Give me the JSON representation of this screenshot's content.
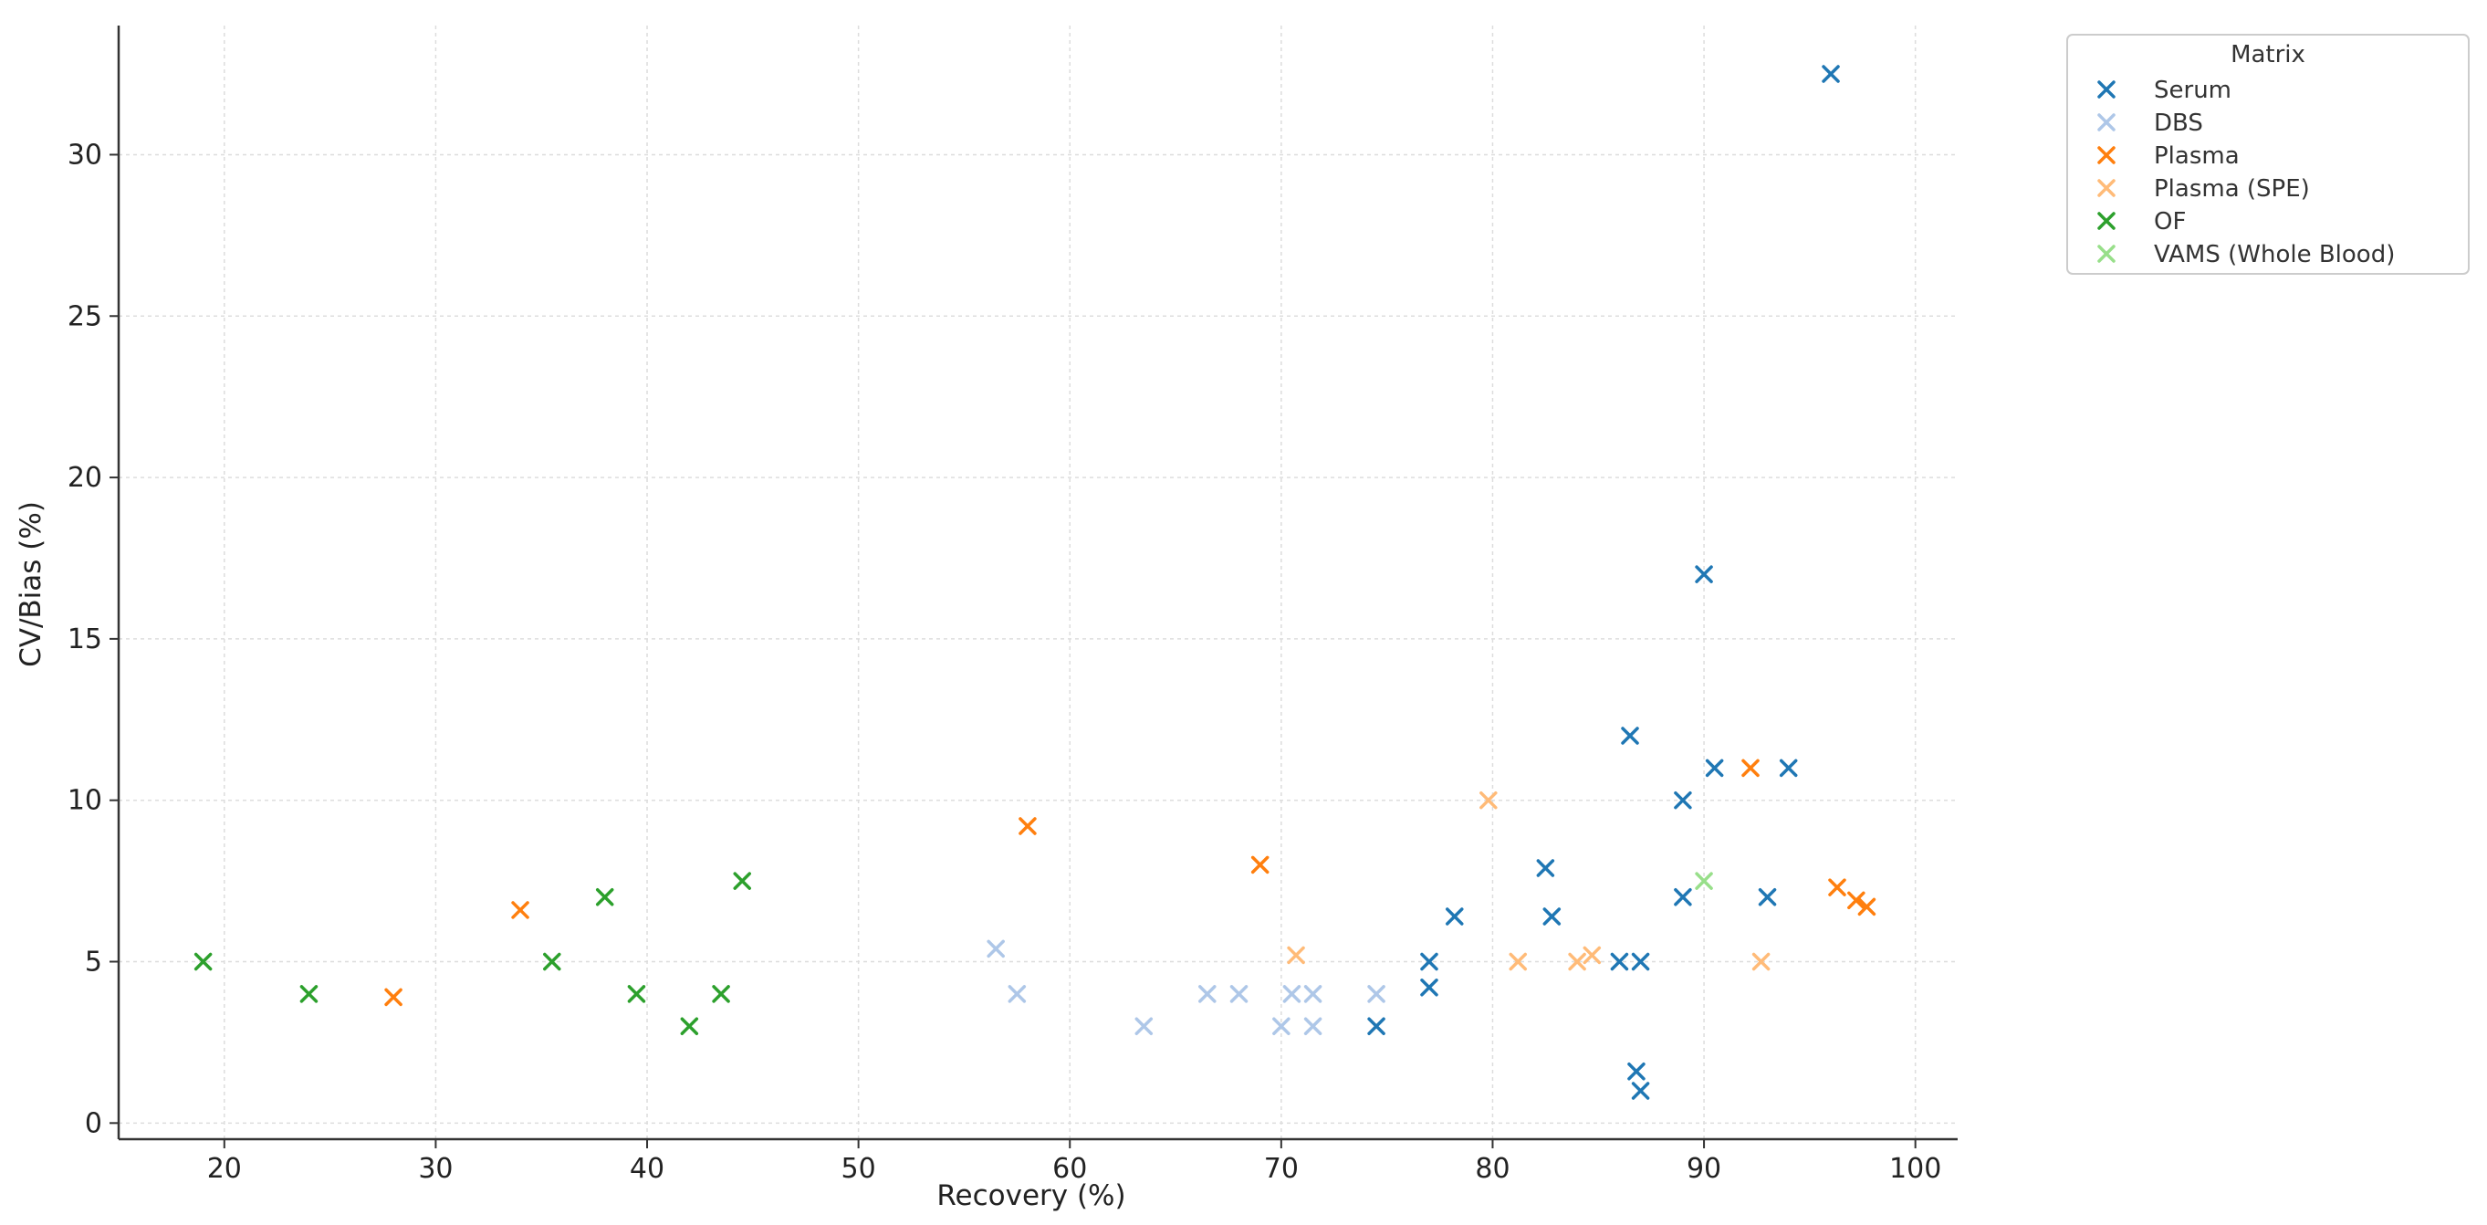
{
  "chart_data": {
    "type": "scatter",
    "xlabel": "Recovery (%)",
    "ylabel": "CV/Bias (%)",
    "xlim": [
      15,
      102
    ],
    "ylim": [
      -0.5,
      34
    ],
    "xticks": [
      20,
      30,
      40,
      50,
      60,
      70,
      80,
      90,
      100
    ],
    "yticks": [
      0,
      5,
      10,
      15,
      20,
      25,
      30
    ],
    "grid": true,
    "marker": "x",
    "legend": {
      "title": "Matrix",
      "placement": "outside-top-right"
    },
    "series": [
      {
        "name": "Serum",
        "color": "#1f77b4",
        "points": [
          [
            96,
            32.5
          ],
          [
            90,
            17
          ],
          [
            86.5,
            12
          ],
          [
            90.5,
            11
          ],
          [
            94,
            11
          ],
          [
            89,
            10
          ],
          [
            82.5,
            7.9
          ],
          [
            89,
            7
          ],
          [
            93,
            7
          ],
          [
            78.2,
            6.4
          ],
          [
            82.8,
            6.4
          ],
          [
            77,
            5
          ],
          [
            86,
            5
          ],
          [
            87,
            5
          ],
          [
            77,
            4.2
          ],
          [
            74.5,
            3
          ],
          [
            86.8,
            1.6
          ],
          [
            87,
            1
          ]
        ]
      },
      {
        "name": "DBS",
        "color": "#aec7e8",
        "points": [
          [
            56.5,
            5.4
          ],
          [
            57.5,
            4
          ],
          [
            66.5,
            4
          ],
          [
            68,
            4
          ],
          [
            70.5,
            4
          ],
          [
            71.5,
            4
          ],
          [
            74.5,
            4
          ],
          [
            63.5,
            3
          ],
          [
            70,
            3
          ],
          [
            71.5,
            3
          ]
        ]
      },
      {
        "name": "Plasma",
        "color": "#ff7f0e",
        "points": [
          [
            58,
            9.2
          ],
          [
            69,
            8
          ],
          [
            34,
            6.6
          ],
          [
            28,
            3.9
          ],
          [
            92.2,
            11
          ],
          [
            96.3,
            7.3
          ],
          [
            97.2,
            6.9
          ],
          [
            97.7,
            6.7
          ]
        ]
      },
      {
        "name": "Plasma (SPE)",
        "color": "#ffbb78",
        "points": [
          [
            79.8,
            10
          ],
          [
            70.7,
            5.2
          ],
          [
            81.2,
            5
          ],
          [
            84,
            5
          ],
          [
            84.7,
            5.2
          ],
          [
            92.7,
            5
          ]
        ]
      },
      {
        "name": "OF",
        "color": "#2ca02c",
        "points": [
          [
            19,
            5
          ],
          [
            24,
            4
          ],
          [
            35.5,
            5
          ],
          [
            38,
            7
          ],
          [
            39.5,
            4
          ],
          [
            42,
            3
          ],
          [
            43.5,
            4
          ],
          [
            44.5,
            7.5
          ]
        ]
      },
      {
        "name": "VAMS (Whole Blood)",
        "color": "#98df8a",
        "points": [
          [
            90,
            7.5
          ]
        ]
      }
    ]
  }
}
